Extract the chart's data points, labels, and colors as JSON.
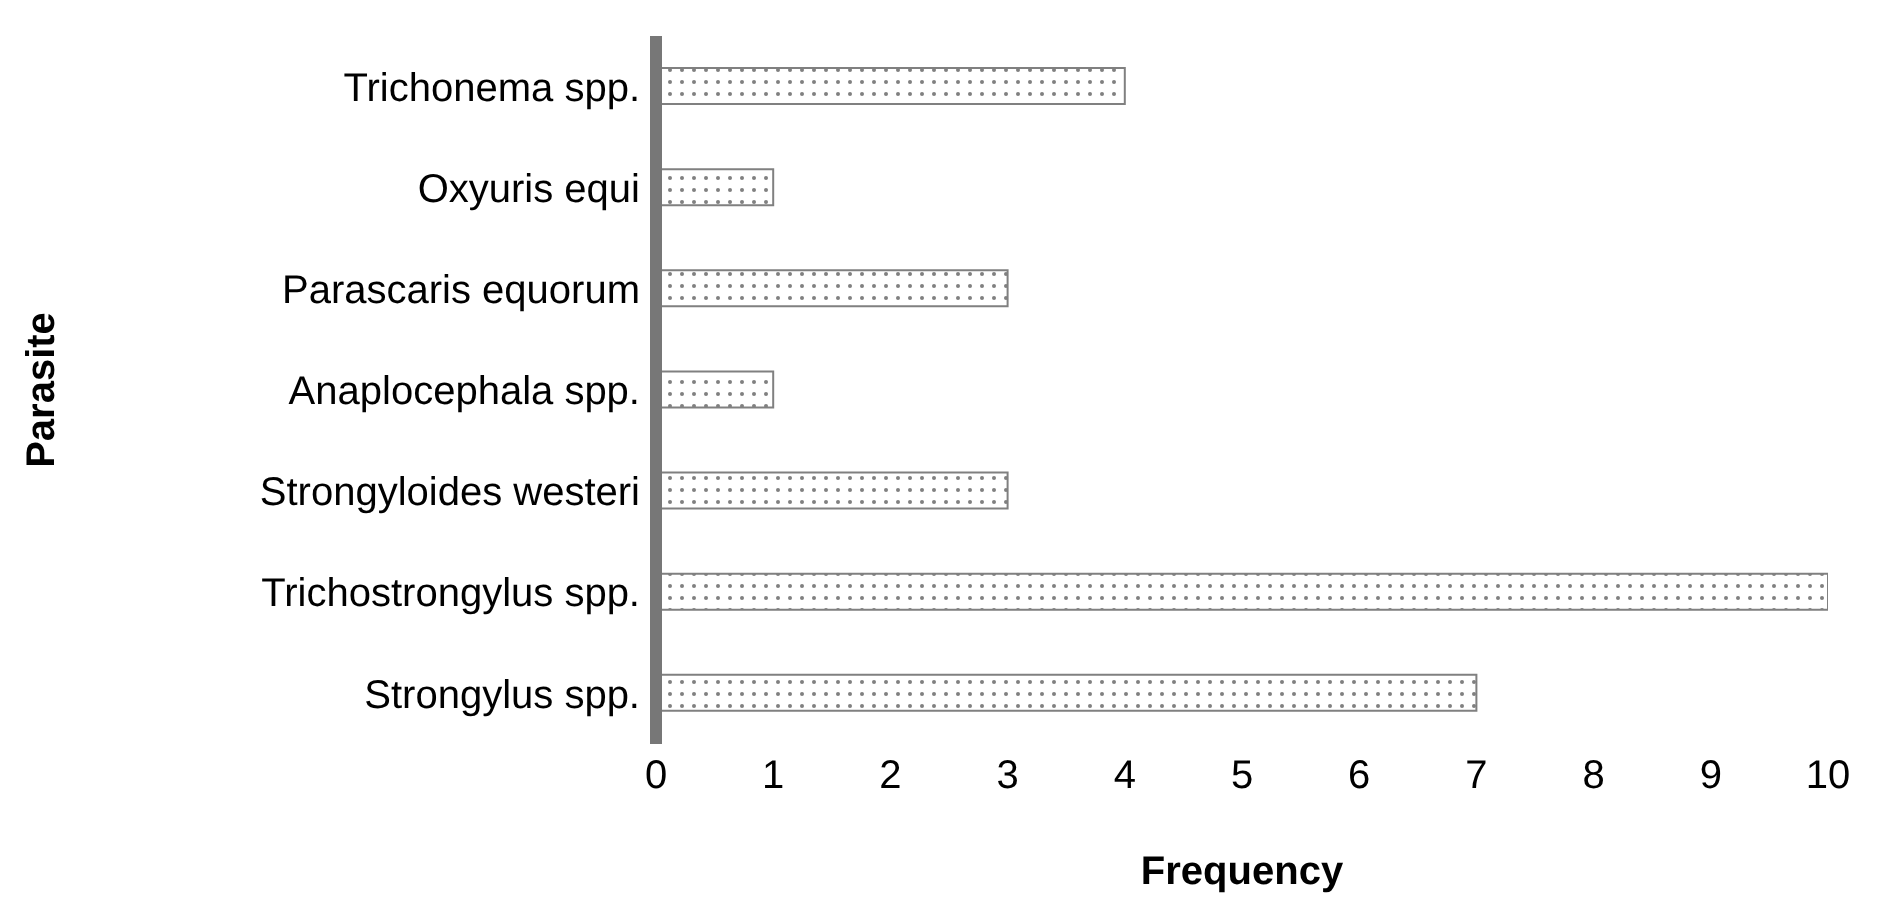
{
  "chart_data": {
    "type": "bar",
    "orientation": "horizontal",
    "xlabel": "Frequency",
    "ylabel": "Parasite",
    "categories": [
      "Trichonema spp.",
      "Oxyuris equi",
      "Parascaris equorum",
      "Anaplocephala spp.",
      "Strongyloides westeri",
      "Trichostrongylus spp.",
      "Strongylus spp."
    ],
    "values": [
      4,
      1,
      3,
      1,
      3,
      10,
      7
    ],
    "color": "#808080",
    "xlim": [
      0,
      10
    ],
    "xticks": [
      0,
      1,
      2,
      3,
      4,
      5,
      6,
      7,
      8,
      9,
      10
    ]
  }
}
